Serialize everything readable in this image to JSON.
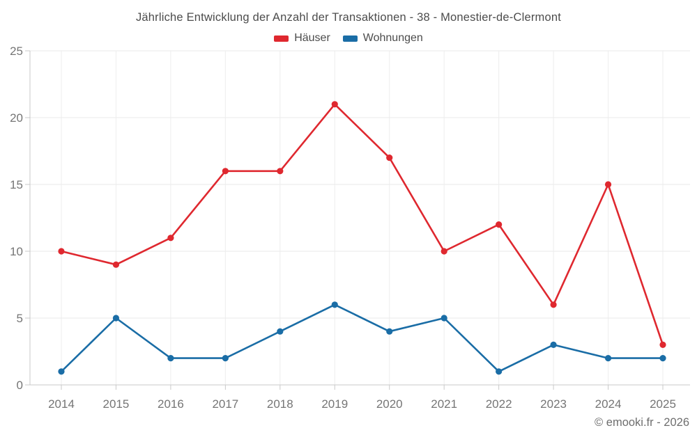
{
  "chart_data": {
    "type": "line",
    "title": "Jährliche Entwicklung der Anzahl der Transaktionen - 38 - Monestier-de-Clermont",
    "categories": [
      "2014",
      "2015",
      "2016",
      "2017",
      "2018",
      "2019",
      "2020",
      "2021",
      "2022",
      "2023",
      "2024",
      "2025"
    ],
    "series": [
      {
        "name": "Häuser",
        "color": "#df282f",
        "values": [
          10,
          9,
          11,
          16,
          16,
          21,
          17,
          10,
          12,
          6,
          15,
          3
        ]
      },
      {
        "name": "Wohnungen",
        "color": "#1a6da6",
        "values": [
          1,
          5,
          2,
          2,
          4,
          6,
          4,
          5,
          1,
          3,
          2,
          2
        ]
      }
    ],
    "ylim": [
      0,
      25
    ],
    "yticks": [
      0,
      5,
      10,
      15,
      20,
      25
    ],
    "grid": true,
    "legend_position": "top"
  },
  "footer": {
    "copyright": "© emooki.fr - 2026"
  },
  "style": {
    "title_color": "#4c4c4c",
    "tick_color": "#757575",
    "grid_color": "#e9e9e9",
    "vgrid_color": "#ededed",
    "axis_color": "#c9c9c9",
    "footer_color": "#6e6e6e",
    "background": "#ffffff"
  }
}
